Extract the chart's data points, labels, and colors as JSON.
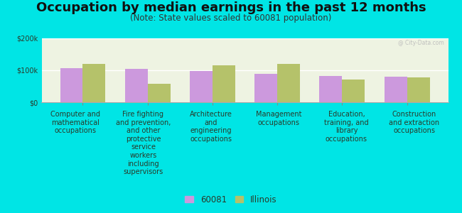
{
  "title": "Occupation by median earnings in the past 12 months",
  "subtitle": "(Note: State values scaled to 60081 population)",
  "background_color": "#00e5e5",
  "plot_bg_color": "#eef3e2",
  "categories": [
    "Computer and\nmathematical\noccupations",
    "Fire fighting\nand prevention,\nand other\nprotective\nservice\nworkers\nincluding\nsupervisors",
    "Architecture\nand\nengineering\noccupations",
    "Management\noccupations",
    "Education,\ntraining, and\nlibrary\noccupations",
    "Construction\nand extraction\noccupations"
  ],
  "values_60081": [
    107000,
    105000,
    98000,
    88000,
    82000,
    80000
  ],
  "values_illinois": [
    120000,
    58000,
    115000,
    120000,
    72000,
    78000
  ],
  "color_60081": "#cc99dd",
  "color_illinois": "#b5c26a",
  "ylim": [
    0,
    200000
  ],
  "yticks": [
    0,
    100000,
    200000
  ],
  "ytick_labels": [
    "$0",
    "$100k",
    "$200k"
  ],
  "legend_60081": "60081",
  "legend_illinois": "Illinois",
  "bar_width": 0.35,
  "title_fontsize": 13,
  "subtitle_fontsize": 8.5,
  "axis_label_fontsize": 7,
  "legend_fontsize": 8.5,
  "watermark": "@ City-Data.com"
}
